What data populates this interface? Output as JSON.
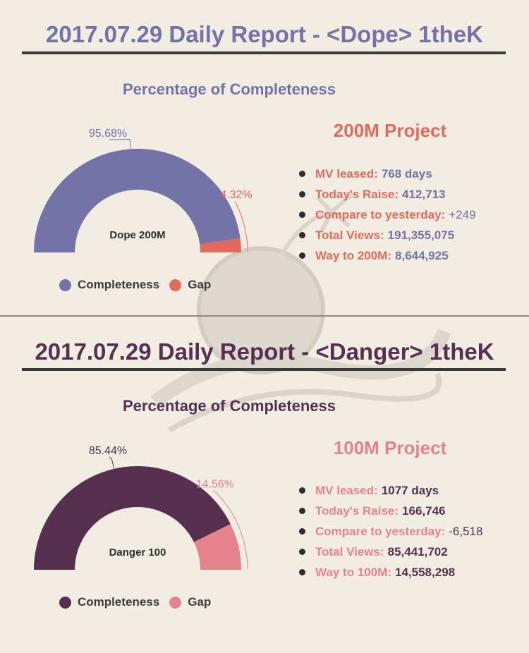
{
  "colors": {
    "background": "#f2ede3",
    "dope_primary": "#7472a6",
    "dope_accent": "#e06a5c",
    "danger_primary": "#55304f",
    "danger_accent": "#e5838d",
    "ink": "#3d3a3a"
  },
  "dope": {
    "title": "2017.07.29 Daily Report - <Dope> 1theK",
    "subtitle": "Percentage of Completeness",
    "chart_label": "Dope 200M",
    "project_title": "200M Project",
    "legend": {
      "completeness": "Completeness",
      "gap": "Gap"
    },
    "stats": [
      {
        "label": "MV leased:",
        "value": "768 days"
      },
      {
        "label": "Today's Raise:",
        "value": "412,713"
      },
      {
        "label": "Compare to yesterday:",
        "value": "+249"
      },
      {
        "label": "Total Views:",
        "value": "191,355,075"
      },
      {
        "label": "Way to 200M:",
        "value": "8,644,925"
      }
    ]
  },
  "danger": {
    "title": "2017.07.29 Daily Report - <Danger> 1theK",
    "subtitle": "Percentage of Completeness",
    "chart_label": "Danger 100",
    "project_title": "100M Project",
    "legend": {
      "completeness": "Completeness",
      "gap": "Gap"
    },
    "stats": [
      {
        "label": "MV leased:",
        "value": "1077 days"
      },
      {
        "label": "Today's Raise:",
        "value": "166,746"
      },
      {
        "label": "Compare to yesterday:",
        "value": "-6,518"
      },
      {
        "label": "Total Views:",
        "value": "85,441,702"
      },
      {
        "label": "Way to 100M:",
        "value": "14,558,298"
      }
    ]
  },
  "chart_data": [
    {
      "type": "pie",
      "style": "half-donut",
      "center_label": "Dope 200M",
      "categories": [
        "Completeness",
        "Gap"
      ],
      "values": [
        95.68,
        4.32
      ],
      "value_labels": [
        "95.68%",
        "4.32%"
      ],
      "colors": [
        "#7472a6",
        "#e06a5c"
      ],
      "legend": [
        "Completeness",
        "Gap"
      ],
      "legend_position": "bottom"
    },
    {
      "type": "pie",
      "style": "half-donut",
      "center_label": "Danger 100",
      "categories": [
        "Completeness",
        "Gap"
      ],
      "values": [
        85.44,
        14.56
      ],
      "value_labels": [
        "85.44%",
        "14.56%"
      ],
      "colors": [
        "#55304f",
        "#e5838d"
      ],
      "legend": [
        "Completeness",
        "Gap"
      ],
      "legend_position": "bottom"
    }
  ]
}
